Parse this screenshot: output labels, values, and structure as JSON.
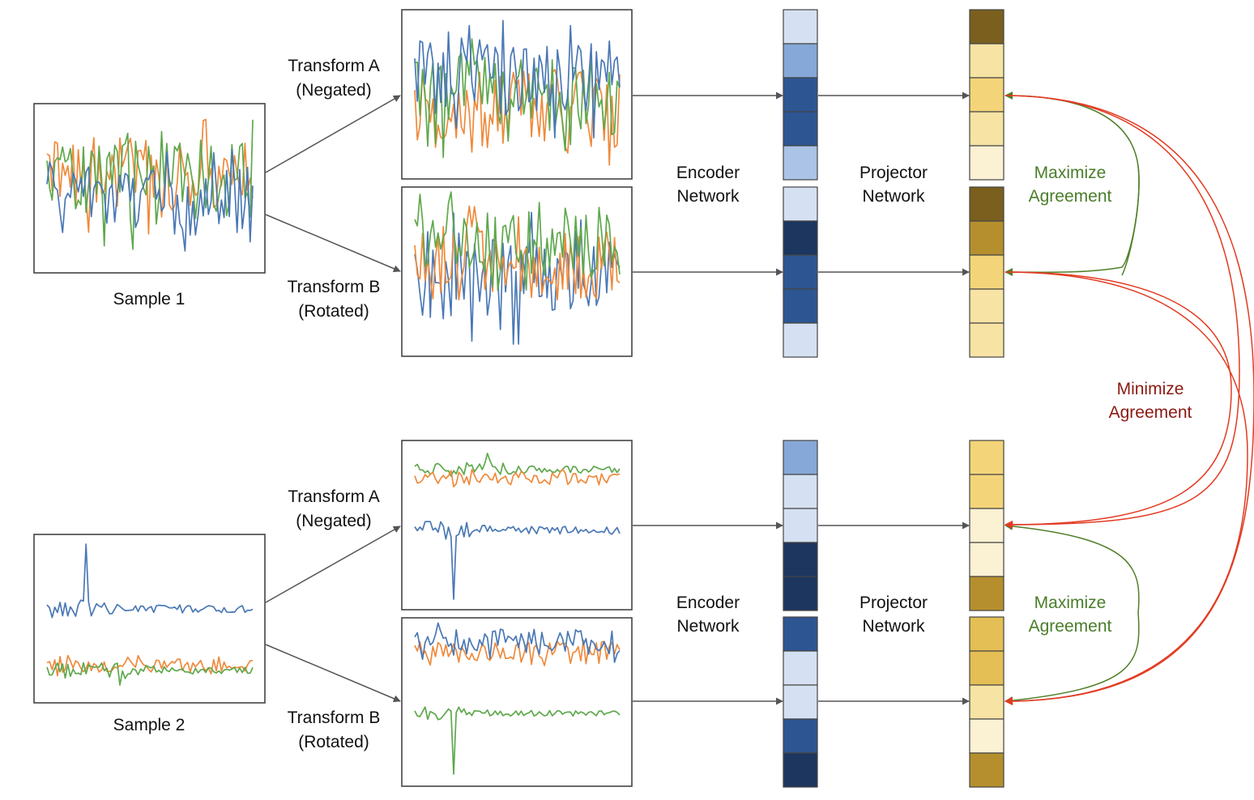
{
  "colors": {
    "series_blue": "#4a78b5",
    "series_orange": "#ef8a3c",
    "series_green": "#5ea84c",
    "maximize_green": "#4a7d2a",
    "minimize_red": "#8b1a12",
    "arc_red": "#e23b22",
    "blue_scale": [
      "#d5e1f2",
      "#86a8d8",
      "#aac3e6",
      "#2d5592",
      "#1c365f"
    ],
    "gold_scale": [
      "#fbf1d3",
      "#f7e3a4",
      "#f4d479",
      "#e4bf55",
      "#b58f2e",
      "#7a5f1f"
    ]
  },
  "samples": [
    {
      "label": "Sample 1",
      "icon": "multivariate-noisy-signal-icon",
      "branches": [
        {
          "transform_line1": "Transform A",
          "transform_line2": "(Negated)",
          "encoder_cells": [
            "light",
            "medium",
            "dark",
            "dark",
            "pale"
          ],
          "projector_cells": [
            "darkgold",
            "pale",
            "gold",
            "pale",
            "cream"
          ]
        },
        {
          "transform_line1": "Transform B",
          "transform_line2": "(Rotated)",
          "encoder_cells": [
            "light",
            "darkest",
            "dark",
            "dark",
            "light"
          ],
          "projector_cells": [
            "darkgold",
            "ochre",
            "gold",
            "pale",
            "pale"
          ]
        }
      ],
      "encoder_label_line1": "Encoder",
      "encoder_label_line2": "Network",
      "projector_label_line1": "Projector",
      "projector_label_line2": "Network",
      "maximize_line1": "Maximize",
      "maximize_line2": "Agreement"
    },
    {
      "label": "Sample 2",
      "icon": "multivariate-spike-signal-icon",
      "branches": [
        {
          "transform_line1": "Transform A",
          "transform_line2": "(Negated)",
          "encoder_cells": [
            "medium",
            "light",
            "light",
            "darkest",
            "darkest"
          ],
          "projector_cells": [
            "gold",
            "gold",
            "cream",
            "cream",
            "ochre"
          ]
        },
        {
          "transform_line1": "Transform B",
          "transform_line2": "(Rotated)",
          "encoder_cells": [
            "dark",
            "light",
            "light",
            "dark",
            "darkest"
          ],
          "projector_cells": [
            "amber",
            "amber",
            "pale",
            "cream",
            "ochre"
          ]
        }
      ],
      "encoder_label_line1": "Encoder",
      "encoder_label_line2": "Network",
      "projector_label_line1": "Projector",
      "projector_label_line2": "Network",
      "maximize_line1": "Maximize",
      "maximize_line2": "Agreement"
    }
  ],
  "minimize": {
    "line1": "Minimize",
    "line2": "Agreement"
  }
}
